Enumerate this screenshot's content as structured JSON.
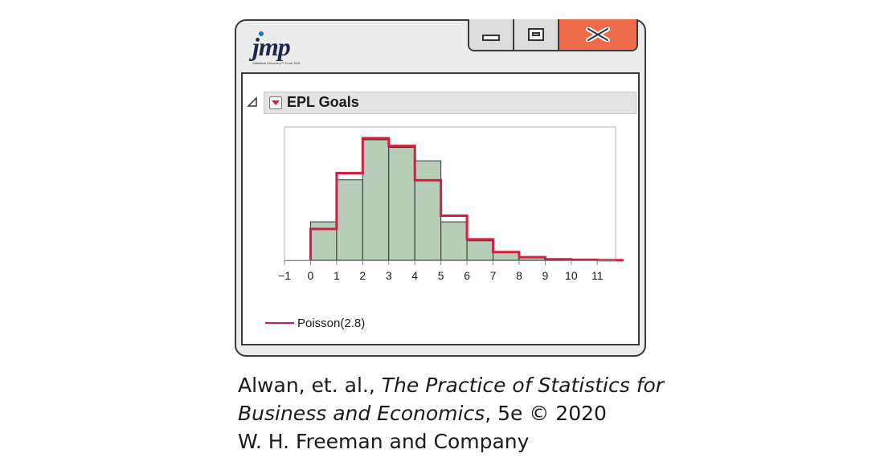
{
  "window": {
    "logo_text": "jmp",
    "logo_tagline": "Statistical Discovery™ From SAS.",
    "buttons": [
      "minimize",
      "maximize",
      "close"
    ],
    "close_color": "#ee6b4b",
    "icons": {
      "disclosure": "triangle-icon",
      "menu": "red-dropdown-icon",
      "close": "x-icon"
    }
  },
  "report": {
    "title": "EPL Goals"
  },
  "chart_data": {
    "type": "bar",
    "title": "",
    "xlabel": "",
    "ylabel": "",
    "x_ticks": [
      "−1",
      "0",
      "1",
      "2",
      "3",
      "4",
      "5",
      "6",
      "7",
      "8",
      "9",
      "10",
      "11"
    ],
    "xlim": [
      -1,
      11.7
    ],
    "ylim": [
      0,
      0.26
    ],
    "bin_width": 1,
    "histogram": {
      "bin_starts": [
        0,
        1,
        2,
        3,
        4,
        5,
        6,
        7,
        8,
        9,
        10,
        11
      ],
      "values": [
        0.075,
        0.157,
        0.235,
        0.22,
        0.194,
        0.075,
        0.038,
        0.016,
        0.006,
        0.002,
        0.001,
        0.0005
      ],
      "fill": "#b7cdb8",
      "stroke": "#333333"
    },
    "series": [
      {
        "name": "Poisson(2.8)",
        "x": [
          0,
          1,
          2,
          3,
          4,
          5,
          6,
          7,
          8,
          9,
          10,
          11
        ],
        "values": [
          0.061,
          0.17,
          0.238,
          0.223,
          0.156,
          0.087,
          0.041,
          0.016,
          0.006,
          0.002,
          0.001,
          0.0002
        ],
        "color": "#d41f3f"
      }
    ],
    "grid": false,
    "legend": "bottom-left"
  },
  "caption": {
    "line1_prefix": "Alwan, et. al., ",
    "line1_italic": "The Practice of Statistics for",
    "line2_italic": "Business and Economics",
    "line2_suffix": ", 5e © 2020",
    "line3": "W. H. Freeman and Company"
  }
}
